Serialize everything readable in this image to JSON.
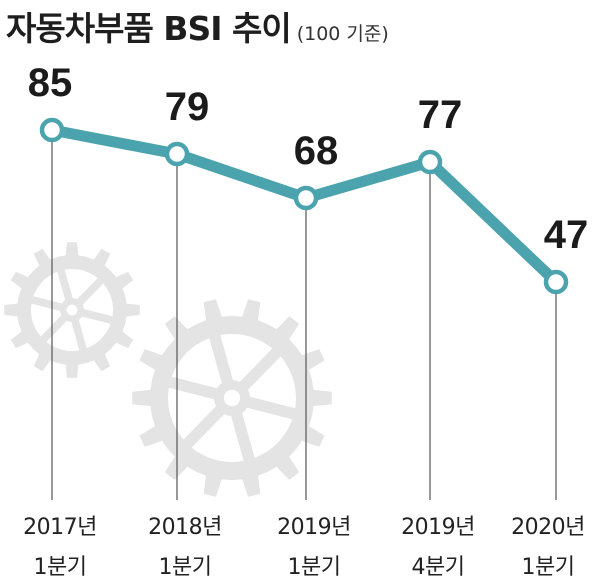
{
  "title": "자동차부품 BSI 추이",
  "subtitle": "(100 기준)",
  "colors": {
    "line": "#4aa3ad",
    "point_fill": "#ffffff",
    "gridline": "#555555",
    "gear": "#e4e4e4",
    "text": "#1b1b1b"
  },
  "chart_data": {
    "type": "line",
    "title": "자동차부품 BSI 추이",
    "subtitle": "(100 기준)",
    "categories": [
      [
        "2017년",
        "1분기"
      ],
      [
        "2018년",
        "1분기"
      ],
      [
        "2019년",
        "1분기"
      ],
      [
        "2019년",
        "4분기"
      ],
      [
        "2020년",
        "1분기"
      ]
    ],
    "values": [
      85,
      79,
      68,
      77,
      47
    ],
    "data_labels": [
      "85",
      "79",
      "68",
      "77",
      "47"
    ],
    "grid": "vertical drop lines",
    "legend": "none"
  }
}
